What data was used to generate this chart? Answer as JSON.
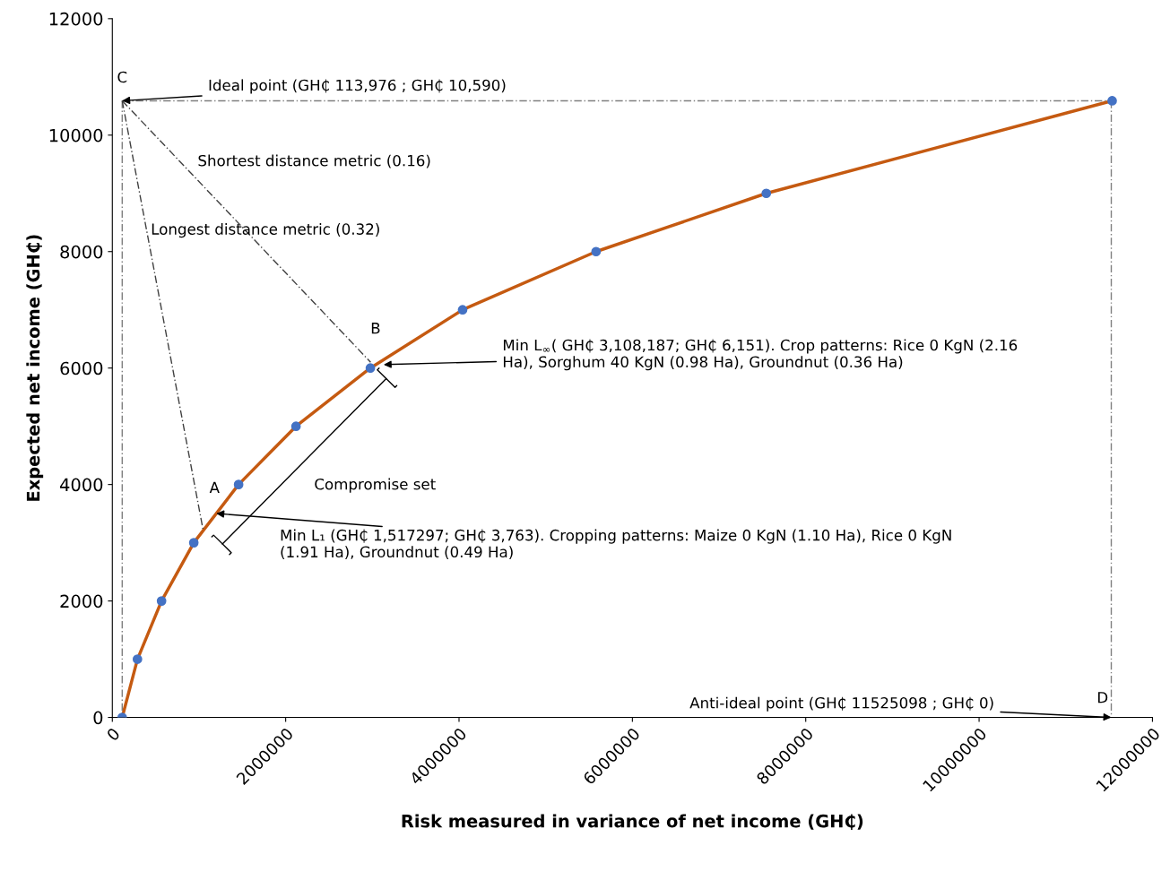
{
  "chart_data": {
    "type": "line",
    "xlabel": "Risk measured in variance of net income (GH₵)",
    "ylabel": "Expected net income (GH₵)",
    "xlim": [
      0,
      12000000
    ],
    "xticks": [
      0,
      2000000,
      4000000,
      6000000,
      8000000,
      10000000,
      12000000
    ],
    "ylim": [
      0,
      12000
    ],
    "yticks": [
      0,
      2000,
      4000,
      6000,
      8000,
      10000,
      12000
    ],
    "grid": false,
    "legend": false,
    "series": [
      {
        "color": "#c55a11",
        "marker": "none",
        "line_style": "solid",
        "x": [
          113976,
          290000,
          568000,
          940000,
          1457000,
          2119000,
          2977000,
          4041000,
          5581000,
          7545000,
          11535000
        ],
        "values": [
          0,
          1000,
          2000,
          3000,
          4000,
          5000,
          6000,
          7000,
          8000,
          9000,
          10590
        ]
      },
      {
        "type": "scatter",
        "color": "#4472c4",
        "marker": "circle",
        "x": [
          113976,
          290000,
          568000,
          940000,
          1457000,
          2119000,
          2977000,
          4041000,
          5581000,
          7545000,
          11535000
        ],
        "values": [
          0,
          1000,
          2000,
          3000,
          4000,
          5000,
          6000,
          7000,
          8000,
          9000,
          10590
        ]
      },
      {
        "type": "line",
        "color": "#7f7f7f",
        "marker": "none",
        "line_style": "dashed",
        "x": [
          113976,
          11525098
        ],
        "values": [
          10590,
          10590
        ]
      },
      {
        "type": "line",
        "color": "#7f7f7f",
        "marker": "none",
        "line_style": "dashed",
        "x": [
          113976,
          113976
        ],
        "values": [
          10590,
          0
        ]
      },
      {
        "type": "line",
        "color": "#7f7f7f",
        "marker": "none",
        "line_style": "dashed",
        "x": [
          11525098,
          11525098
        ],
        "values": [
          10590,
          0
        ]
      },
      {
        "type": "line",
        "color": "#404040",
        "marker": "none",
        "line_style": "dashed",
        "x": [
          113976,
          1050000
        ],
        "values": [
          10590,
          3200
        ]
      },
      {
        "type": "line",
        "color": "#404040",
        "marker": "none",
        "line_style": "dashed",
        "x": [
          113976,
          2980000
        ],
        "values": [
          10590,
          6100
        ]
      }
    ],
    "annotations": [
      {
        "text": "C",
        "x": 113976,
        "y": 10590
      },
      {
        "text": "Ideal point (GH₵ 113,976 ; GH₵ 10,590)",
        "x": 113976,
        "y": 10590
      },
      "Shortest distance metric (0.16)",
      "Longest distance metric (0.32)",
      {
        "text": "B",
        "x": 2980000,
        "y": 6000
      },
      {
        "text": "Min L$_{∞}$( GH₵ 3,108,187; GH₵ 6,151). Crop patterns: Rice 0 KgN (2.16\nHa), Sorghum 40 KgN (0.98 Ha), Groundnut (0.36 Ha)",
        "x": 3130000,
        "y": 6060
      },
      {
        "text": "A",
        "x": 1050000,
        "y": 3200
      },
      {
        "text": "Min L₁ (GH₵ 1,517297; GH₵ 3,763). Cropping patterns: Maize 0 KgN (1.10 Ha), Rice 0 KgN\n(1.91 Ha), Groundnut (0.49 Ha)",
        "x": 1200000,
        "y": 3503
      },
      "Compromise set",
      {
        "text": "D",
        "x": 11525098,
        "y": 0
      },
      {
        "text": "Anti-ideal point (GH₵ 11525098 ; GH₵ 0)",
        "x": 11525098,
        "y": 0
      }
    ]
  }
}
